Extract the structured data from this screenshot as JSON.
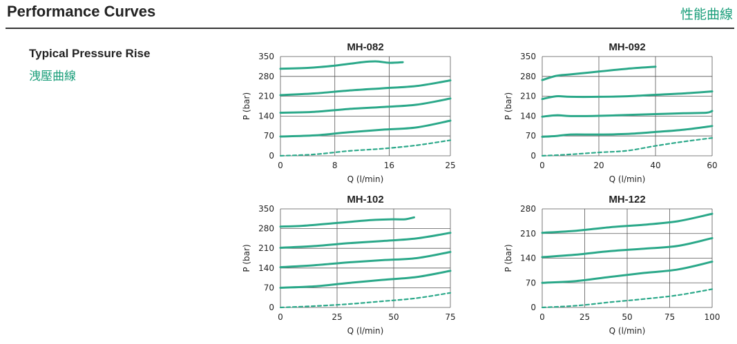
{
  "header": {
    "title": "Performance Curves",
    "title_cn": "性能曲線"
  },
  "section": {
    "label_en": "Typical Pressure Rise",
    "label_cn": "洩壓曲線"
  },
  "colors": {
    "curve": "#2aa889",
    "accent": "#1a9e7a",
    "grid": "#555555"
  },
  "chart_data": [
    {
      "type": "line",
      "title": "MH-082",
      "xlabel": "Q (l/min)",
      "ylabel": "P (bar)",
      "xlim": [
        0,
        25
      ],
      "ylim": [
        0,
        350
      ],
      "xticks": [
        0,
        8,
        16,
        25
      ],
      "yticks": [
        0,
        70,
        140,
        210,
        280,
        350
      ],
      "series": [
        {
          "style": "solid",
          "x": [
            0,
            4,
            8,
            12,
            14,
            16,
            18
          ],
          "y": [
            307,
            310,
            318,
            330,
            333,
            328,
            330
          ]
        },
        {
          "style": "solid",
          "x": [
            0,
            5,
            10,
            15,
            20,
            25
          ],
          "y": [
            214,
            220,
            230,
            238,
            246,
            266
          ]
        },
        {
          "style": "solid",
          "x": [
            0,
            5,
            10,
            15,
            20,
            25
          ],
          "y": [
            152,
            155,
            165,
            172,
            180,
            202
          ]
        },
        {
          "style": "solid",
          "x": [
            0,
            5,
            10,
            15,
            20,
            25
          ],
          "y": [
            68,
            72,
            83,
            92,
            100,
            124
          ]
        },
        {
          "style": "dashed",
          "x": [
            0,
            5,
            10,
            15,
            20,
            25
          ],
          "y": [
            0,
            5,
            17,
            25,
            37,
            55
          ]
        }
      ]
    },
    {
      "type": "line",
      "title": "MH-092",
      "xlabel": "Q (l/min)",
      "ylabel": "P (bar)",
      "xlim": [
        0,
        60
      ],
      "ylim": [
        0,
        350
      ],
      "xticks": [
        0,
        20,
        40,
        60
      ],
      "yticks": [
        0,
        70,
        140,
        210,
        280,
        350
      ],
      "series": [
        {
          "style": "solid",
          "x": [
            0,
            5,
            10,
            20,
            30,
            40
          ],
          "y": [
            267,
            282,
            287,
            297,
            307,
            314
          ]
        },
        {
          "style": "solid",
          "x": [
            0,
            5,
            10,
            20,
            30,
            40,
            50,
            60
          ],
          "y": [
            200,
            210,
            208,
            208,
            210,
            215,
            220,
            227
          ]
        },
        {
          "style": "solid",
          "x": [
            0,
            5,
            10,
            20,
            30,
            40,
            50,
            58,
            60
          ],
          "y": [
            138,
            143,
            140,
            141,
            144,
            147,
            150,
            152,
            158
          ]
        },
        {
          "style": "solid",
          "x": [
            0,
            5,
            10,
            20,
            30,
            40,
            50,
            60
          ],
          "y": [
            67,
            70,
            75,
            75,
            77,
            84,
            92,
            105
          ]
        },
        {
          "style": "dashed",
          "x": [
            0,
            10,
            20,
            30,
            40,
            50,
            60
          ],
          "y": [
            0,
            5,
            12,
            18,
            35,
            50,
            63
          ]
        }
      ]
    },
    {
      "type": "line",
      "title": "MH-102",
      "xlabel": "Q (l/min)",
      "ylabel": "P (bar)",
      "xlim": [
        0,
        75
      ],
      "ylim": [
        0,
        350
      ],
      "xticks": [
        0,
        25,
        50,
        75
      ],
      "yticks": [
        0,
        70,
        140,
        210,
        280,
        350
      ],
      "series": [
        {
          "style": "solid",
          "x": [
            0,
            10,
            25,
            40,
            50,
            55,
            59
          ],
          "y": [
            287,
            290,
            300,
            310,
            313,
            313,
            320
          ]
        },
        {
          "style": "solid",
          "x": [
            0,
            15,
            30,
            45,
            60,
            75
          ],
          "y": [
            212,
            218,
            228,
            236,
            245,
            265
          ]
        },
        {
          "style": "solid",
          "x": [
            0,
            15,
            30,
            45,
            60,
            75
          ],
          "y": [
            143,
            150,
            160,
            168,
            175,
            197
          ]
        },
        {
          "style": "solid",
          "x": [
            0,
            15,
            30,
            45,
            60,
            75
          ],
          "y": [
            70,
            75,
            87,
            98,
            108,
            130
          ]
        },
        {
          "style": "dashed",
          "x": [
            0,
            15,
            30,
            45,
            60,
            75
          ],
          "y": [
            0,
            5,
            12,
            22,
            33,
            52
          ]
        }
      ]
    },
    {
      "type": "line",
      "title": "MH-122",
      "xlabel": "Q (l/min)",
      "ylabel": "P (bar)",
      "xlim": [
        0,
        100
      ],
      "ylim": [
        0,
        280
      ],
      "xticks": [
        0,
        25,
        50,
        75,
        100
      ],
      "yticks": [
        0,
        70,
        140,
        210,
        280
      ],
      "series": [
        {
          "style": "solid",
          "x": [
            0,
            20,
            40,
            60,
            80,
            100
          ],
          "y": [
            212,
            218,
            228,
            235,
            245,
            266
          ]
        },
        {
          "style": "solid",
          "x": [
            0,
            20,
            40,
            60,
            80,
            100
          ],
          "y": [
            143,
            150,
            160,
            167,
            175,
            197
          ]
        },
        {
          "style": "solid",
          "x": [
            0,
            20,
            40,
            60,
            80,
            100
          ],
          "y": [
            70,
            75,
            87,
            98,
            108,
            130
          ]
        },
        {
          "style": "dashed",
          "x": [
            0,
            20,
            40,
            60,
            80,
            100
          ],
          "y": [
            0,
            5,
            15,
            24,
            35,
            52
          ]
        }
      ]
    }
  ]
}
